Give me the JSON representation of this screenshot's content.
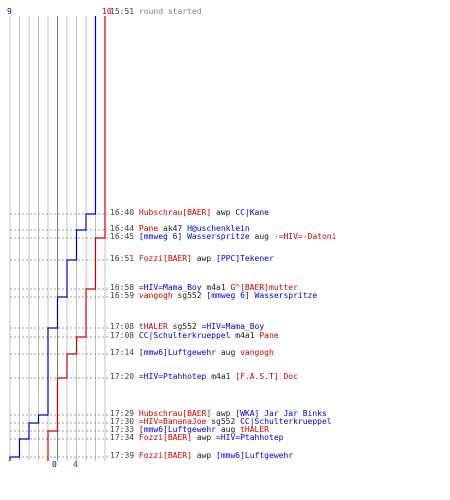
{
  "header": {
    "blue_start": "9",
    "red_start": "10",
    "blue_end": "0",
    "red_end": "4"
  },
  "colors": {
    "blue": "#0000cc",
    "red": "#cc0000",
    "grid": "#c0c0c0",
    "axis": "#808080"
  },
  "chart_data": {
    "type": "line",
    "title": "",
    "xlabel": "",
    "ylabel": "",
    "series": [
      {
        "name": "",
        "color": "#0000cc",
        "values": [
          9,
          8,
          7,
          6,
          5,
          4,
          3,
          2,
          1,
          0
        ]
      },
      {
        "name": "",
        "color": "#cc0000",
        "values": [
          10,
          9,
          8,
          7,
          6,
          5,
          4
        ]
      }
    ]
  },
  "events": [
    {
      "time": "15:51",
      "text": "round started",
      "type": "note"
    },
    {
      "time": "16:40",
      "attacker": "Hubschrau[BAER]",
      "attacker_team": "red",
      "weapon": "awp",
      "victim": "CC|Kane",
      "victim_team": "blue"
    },
    {
      "time": "16:44",
      "attacker": "Pane",
      "attacker_team": "red",
      "weapon": "ak47",
      "victim": "H@uschenklein",
      "victim_team": "blue"
    },
    {
      "time": "16:45",
      "attacker": "[mmweg 6] Wasserspritze",
      "attacker_team": "blue",
      "weapon": "aug",
      "victim": "-=HIV=-Datoni",
      "victim_team": "red"
    },
    {
      "time": "16:51",
      "attacker": "Fozzi[BAER]",
      "attacker_team": "red",
      "weapon": "awp",
      "victim": "[PPC]Tekener",
      "victim_team": "blue"
    },
    {
      "time": "16:58",
      "attacker": "=HIV=Mama_Boy",
      "attacker_team": "blue",
      "weapon": "m4a1",
      "victim": "G^[BAER]mutter",
      "victim_team": "red"
    },
    {
      "time": "16:59",
      "attacker": "vangogh",
      "attacker_team": "red",
      "weapon": "sg552",
      "victim": "[mmweg 6] Wasserspritze",
      "victim_team": "blue"
    },
    {
      "time": "17:08",
      "attacker": "tHALER",
      "attacker_team": "red",
      "weapon": "sg552",
      "victim": "=HIV=Mama_Boy",
      "victim_team": "blue"
    },
    {
      "time": "17:08",
      "attacker": "CC|Schulterkrueppel",
      "attacker_team": "blue",
      "weapon": "m4a1",
      "victim": "Pane",
      "victim_team": "red"
    },
    {
      "time": "17:14",
      "attacker": "[mmw6]Luftgewehr",
      "attacker_team": "blue",
      "weapon": "aug",
      "victim": "vangogh",
      "victim_team": "red"
    },
    {
      "time": "17:20",
      "attacker": "=HIV=Ptahhotep",
      "attacker_team": "blue",
      "weapon": "m4a1",
      "victim": "[F.A.S.T] Doc",
      "victim_team": "red"
    },
    {
      "time": "17:29",
      "attacker": "Hubschrau[BAER]",
      "attacker_team": "red",
      "weapon": "awp",
      "victim": "[WKA] Jar Jar Binks",
      "victim_team": "blue"
    },
    {
      "time": "17:30",
      "attacker": "=HIV=BananaJoe",
      "attacker_team": "red",
      "weapon": "sg552",
      "victim": "CC|Schulterkrueppel",
      "victim_team": "blue"
    },
    {
      "time": "17:33",
      "attacker": "[mmw6]Luftgewehr",
      "attacker_team": "blue",
      "weapon": "aug",
      "victim": "tHALER",
      "victim_team": "red"
    },
    {
      "time": "17:34",
      "attacker": "Fozzi[BAER]",
      "attacker_team": "red",
      "weapon": "awp",
      "victim": "=HIV=Ptahhotep",
      "victim_team": "blue"
    },
    {
      "time": "17:39",
      "attacker": "Fozzi[BAER]",
      "attacker_team": "red",
      "weapon": "awp",
      "victim": "[mmw6]Luftgewehr",
      "victim_team": "blue"
    }
  ]
}
